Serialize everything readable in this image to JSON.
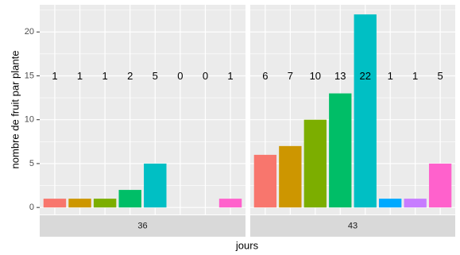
{
  "chart_data": {
    "type": "bar",
    "xlabel": "jours",
    "ylabel": "nombre de fruit par plante",
    "ylim": [
      -0.8,
      23.1
    ],
    "yticks": [
      0,
      5,
      10,
      15,
      20
    ],
    "yticks_labels": [
      "0",
      "5",
      "10",
      "15",
      "20"
    ],
    "grid": true,
    "label_y": 15,
    "colors": [
      "#F8766D",
      "#CD9600",
      "#7CAE00",
      "#00BE67",
      "#00BFC4",
      "#00A9FF",
      "#C77CFF",
      "#FF61CC"
    ],
    "panels": [
      {
        "label": "36",
        "values": [
          1,
          1,
          1,
          2,
          5,
          0,
          0,
          1
        ],
        "data_labels": [
          "1",
          "1",
          "1",
          "2",
          "5",
          "0",
          "0",
          "1"
        ]
      },
      {
        "label": "43",
        "values": [
          6,
          7,
          10,
          13,
          22,
          1,
          1,
          5
        ],
        "data_labels": [
          "6",
          "7",
          "10",
          "13",
          "22",
          "1",
          "1",
          "5"
        ]
      }
    ]
  }
}
